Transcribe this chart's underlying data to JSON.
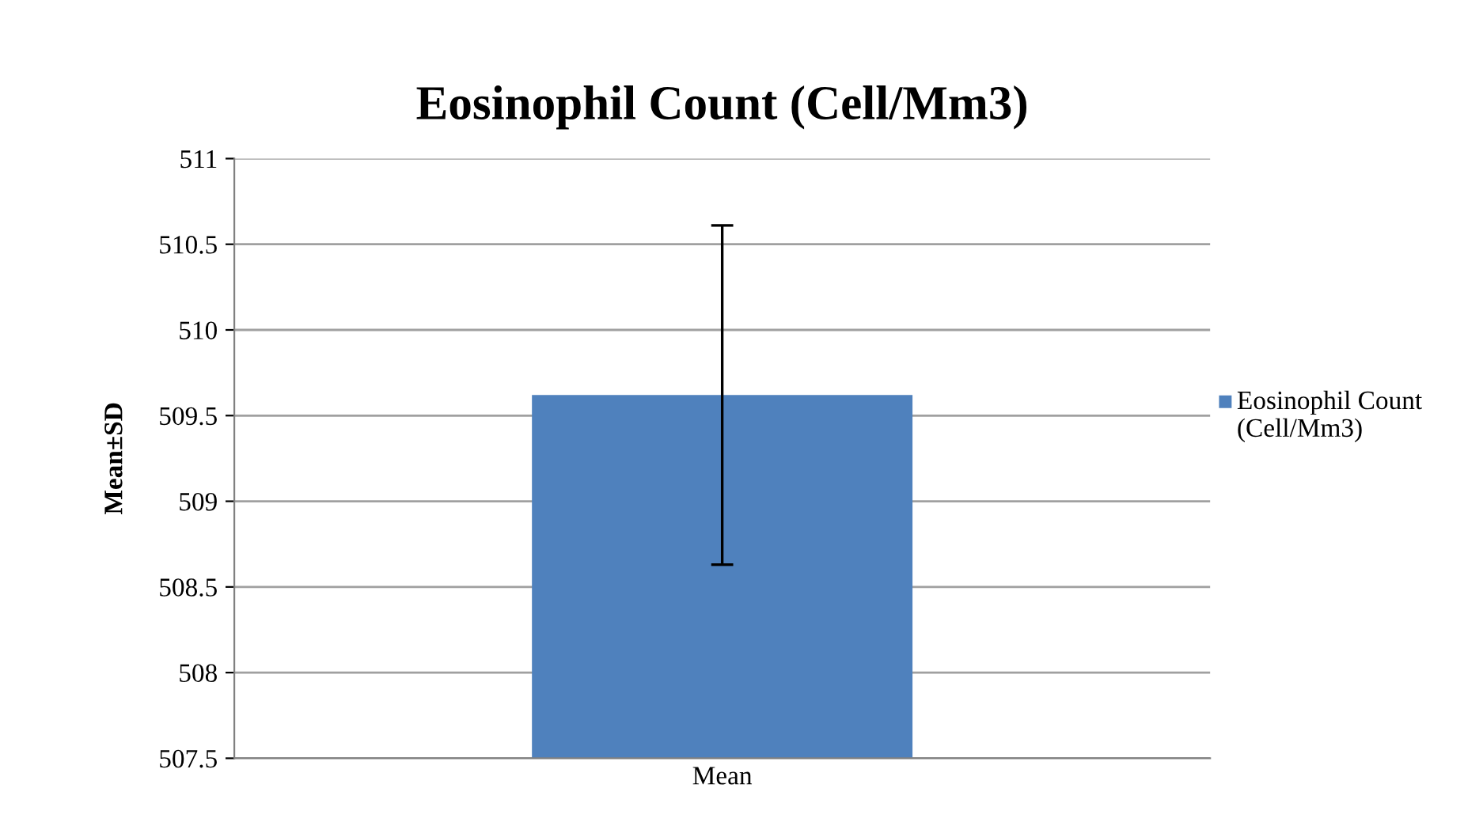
{
  "chart_data": {
    "type": "bar",
    "title": "Eosinophil Count (Cell/Mm3)",
    "ylabel": "Mean±SD",
    "categories": [
      "Mean"
    ],
    "series": [
      {
        "name": "Eosinophil Count (Cell/Mm3)",
        "color": "#4f81bd",
        "values": [
          509.62
        ],
        "errors": [
          0.99
        ]
      }
    ],
    "ylim": [
      507.5,
      511
    ],
    "yticks": [
      507.5,
      508,
      508.5,
      509,
      509.5,
      510,
      510.5,
      511
    ],
    "grid": "y",
    "legend": "right"
  }
}
